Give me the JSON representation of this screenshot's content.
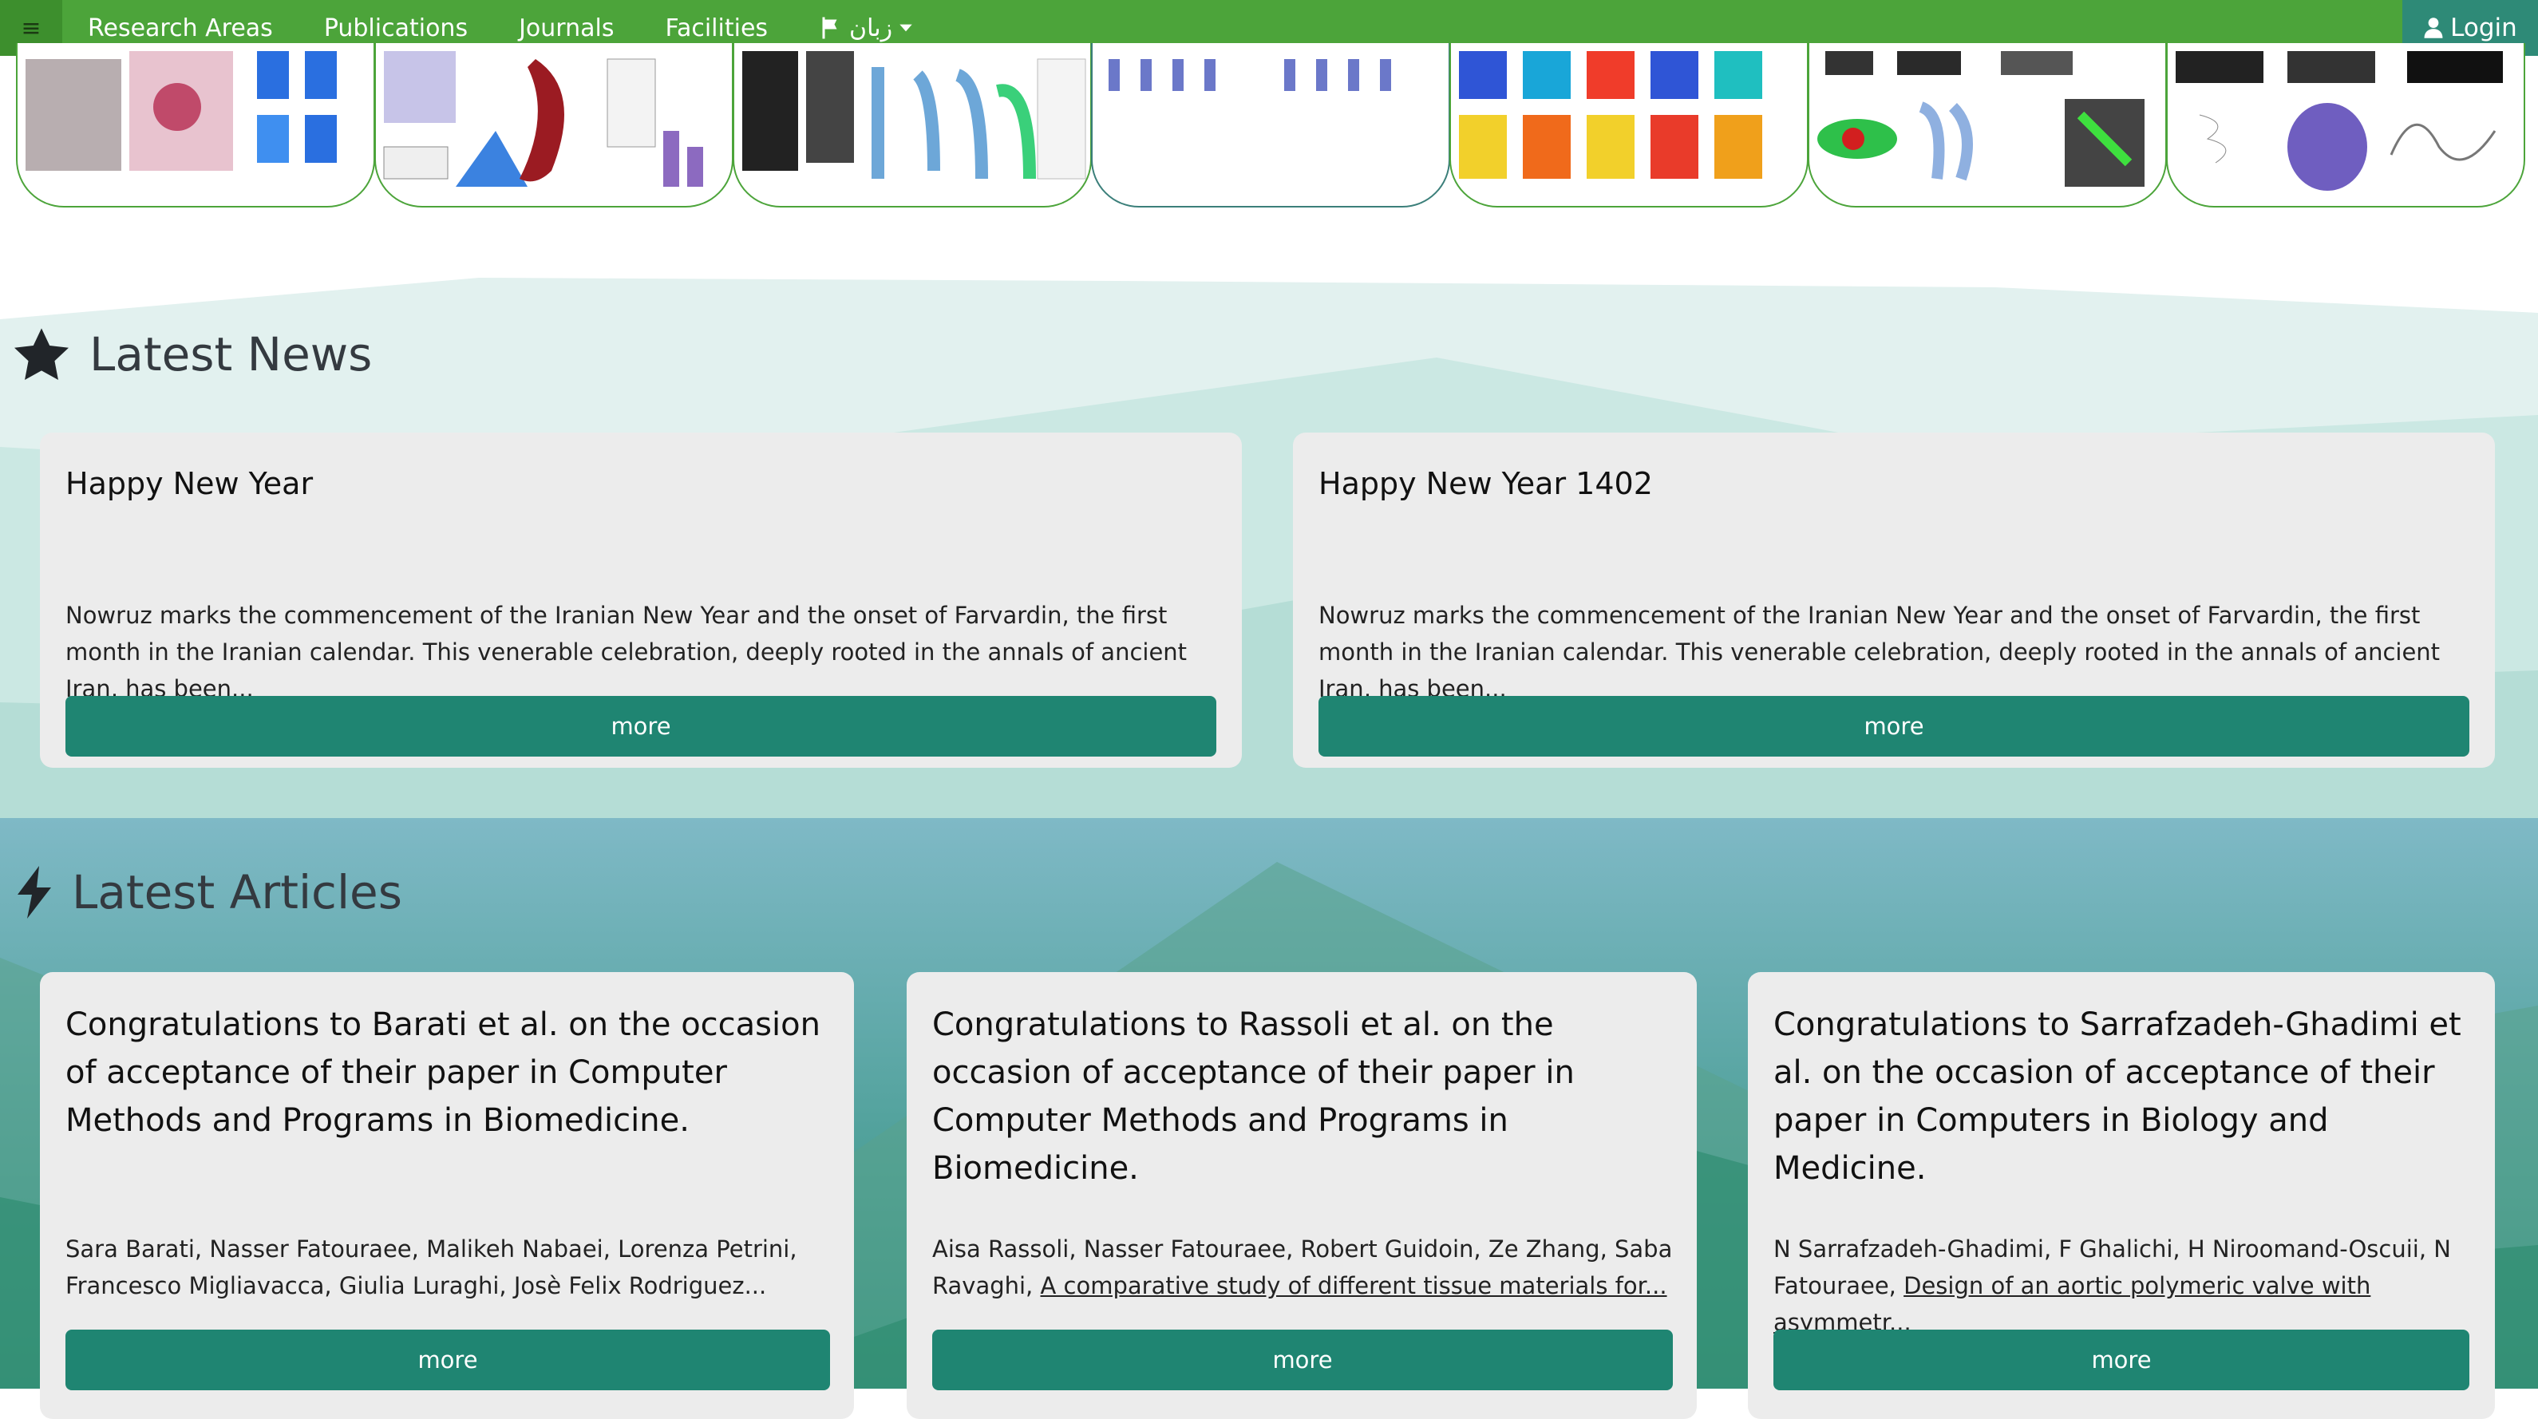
{
  "nav": {
    "menu_icon": "hamburger-icon",
    "items": [
      "Research Areas",
      "Publications",
      "Journals",
      "Facilities"
    ],
    "language_label": "زبان",
    "login_label": "Login"
  },
  "colors": {
    "nav_green": "#4ca43a",
    "button_teal": "#1f8572",
    "login_teal": "#2e8a77"
  },
  "news": {
    "title": "Latest News",
    "items": [
      {
        "title": "Happy New Year",
        "body": "Nowruz marks the commencement of the Iranian New Year and the onset of Farvardin, the first month in the Iranian calendar. This venerable celebration, deeply rooted in the annals of ancient Iran, has been...",
        "more": "more"
      },
      {
        "title": "Happy New Year 1402",
        "body": "Nowruz marks the commencement of the Iranian New Year and the onset of Farvardin, the first month in the Iranian calendar. This venerable celebration, deeply rooted in the annals of ancient Iran, has been...",
        "more": "more"
      }
    ]
  },
  "articles": {
    "title": "Latest Articles",
    "items": [
      {
        "title": "Congratulations to Barati et al. on the occasion of acceptance of their paper in Computer Methods and Programs in Biomedicine.",
        "authors": "Sara Barati, Nasser Fatouraee, Malikeh Nabaei, Lorenza Petrini, Francesco Migliavacca, Giulia Luraghi, Josè Felix Rodriguez...",
        "link": "",
        "more": "more"
      },
      {
        "title": "Congratulations to Rassoli et al. on the occasion of acceptance of their paper in Computer Methods and Programs in Biomedicine.",
        "authors": "Aisa Rassoli, Nasser Fatouraee, Robert Guidoin, Ze Zhang, Saba Ravaghi, ",
        "link": "A comparative study of different tissue materials for...",
        "more": "more"
      },
      {
        "title": "Congratulations to Sarrafzadeh-Ghadimi et al. on the occasion of acceptance of their paper in Computers in Biology and Medicine.",
        "authors": "N Sarrafzadeh-Ghadimi, F Ghalichi, H Niroomand-Oscuii, N Fatouraee, ",
        "link": "Design of an aortic polymeric valve with asymmetr...",
        "more": "more"
      }
    ]
  }
}
